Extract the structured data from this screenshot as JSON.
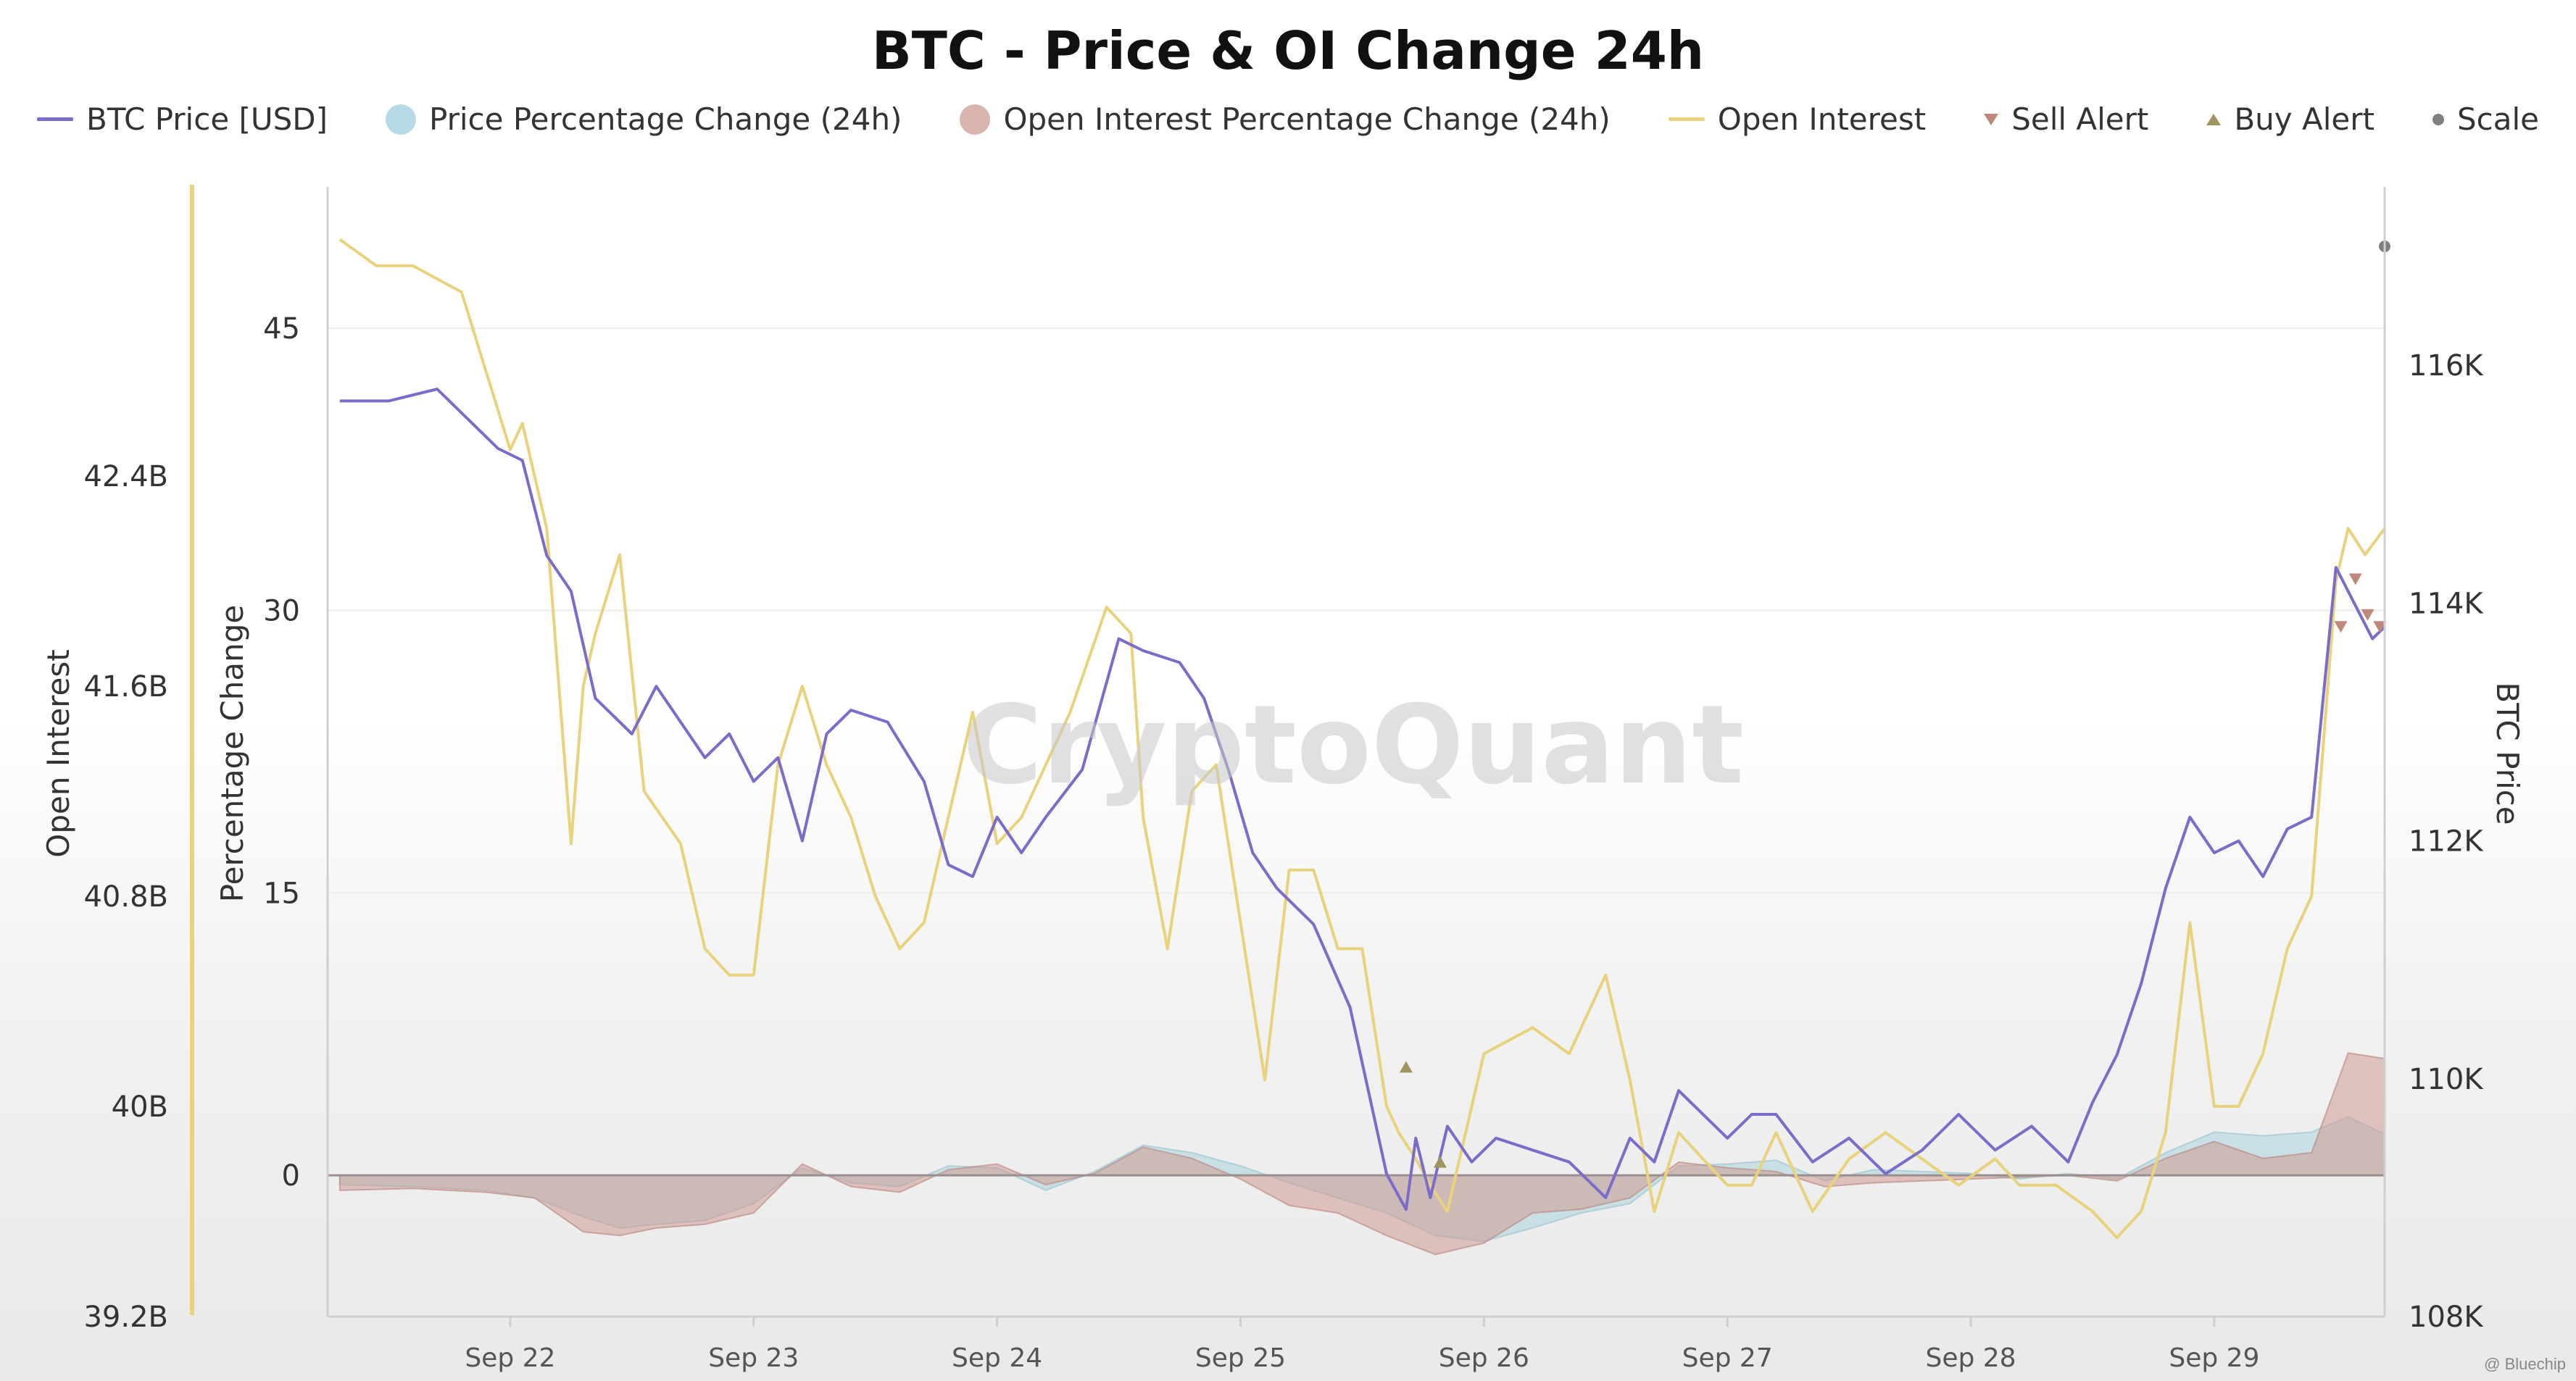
{
  "chart_data": {
    "type": "line",
    "title": "BTC - Price & OI Change 24h",
    "watermark": "CryptoQuant",
    "credit": "@ Bluechip",
    "legend": [
      {
        "label": "BTC Price [USD]",
        "swatch": "line",
        "color": "#7b6cc9"
      },
      {
        "label": "Price Percentage Change (24h)",
        "swatch": "dot",
        "color": "#b7dbe6"
      },
      {
        "label": "Open Interest Percentage Change (24h)",
        "swatch": "dot",
        "color": "#d9b5ae"
      },
      {
        "label": "Open Interest",
        "swatch": "line",
        "color": "#e8d27c"
      },
      {
        "label": "Sell Alert",
        "swatch": "tri-down",
        "color": "#c08878"
      },
      {
        "label": "Buy Alert",
        "swatch": "tri-up",
        "color": "#a09460"
      },
      {
        "label": "Scale",
        "swatch": "small-dot",
        "color": "#7f7f7f"
      }
    ],
    "axes": {
      "open_interest": {
        "label": "Open Interest",
        "ticks": [
          "42.4B",
          "41.6B",
          "40.8B",
          "40B",
          "39.2B"
        ],
        "min": 39.2,
        "max": 43.5,
        "unit": "B"
      },
      "percentage": {
        "label": "Percentage Change",
        "ticks": [
          "45",
          "30",
          "15",
          "0"
        ],
        "min": -7.5,
        "max": 52.5
      },
      "btc_price": {
        "label": "BTC Price",
        "ticks": [
          "116K",
          "114K",
          "112K",
          "110K",
          "108K"
        ],
        "min": 108000,
        "max": 117500
      },
      "x": {
        "ticks": [
          "Sep 22",
          "Sep 23",
          "Sep 24",
          "Sep 25",
          "Sep 26",
          "Sep 27",
          "Sep 28",
          "Sep 29"
        ],
        "x_min_day": 21.25,
        "x_max_day": 29.7
      }
    },
    "series": [
      {
        "name": "BTC Price [USD]",
        "color": "#7b6cc9",
        "x": [
          21.3,
          21.5,
          21.7,
          21.85,
          21.95,
          22.05,
          22.15,
          22.25,
          22.35,
          22.5,
          22.6,
          22.7,
          22.8,
          22.9,
          23.0,
          23.1,
          23.2,
          23.3,
          23.4,
          23.55,
          23.7,
          23.8,
          23.9,
          24.0,
          24.1,
          24.2,
          24.35,
          24.5,
          24.6,
          24.75,
          24.85,
          24.95,
          25.05,
          25.15,
          25.3,
          25.45,
          25.6,
          25.68,
          25.72,
          25.78,
          25.85,
          25.95,
          26.05,
          26.2,
          26.35,
          26.5,
          26.6,
          26.7,
          26.8,
          26.9,
          27.0,
          27.1,
          27.2,
          27.35,
          27.5,
          27.65,
          27.8,
          27.95,
          28.1,
          28.25,
          28.4,
          28.5,
          28.6,
          28.7,
          28.8,
          28.9,
          29.0,
          29.1,
          29.2,
          29.3,
          29.4,
          29.5,
          29.55,
          29.6,
          29.65,
          29.7
        ],
        "y": [
          115700,
          115700,
          115800,
          115500,
          115300,
          115200,
          114400,
          114100,
          113200,
          112900,
          113300,
          113000,
          112700,
          112900,
          112500,
          112700,
          112000,
          112900,
          113100,
          113000,
          112500,
          111800,
          111700,
          112200,
          111900,
          112200,
          112600,
          113700,
          113600,
          113500,
          113200,
          112600,
          111900,
          111600,
          111300,
          110600,
          109200,
          108900,
          109500,
          109000,
          109600,
          109300,
          109500,
          109400,
          109300,
          109000,
          109500,
          109300,
          109900,
          109700,
          109500,
          109700,
          109700,
          109300,
          109500,
          109200,
          109400,
          109700,
          109400,
          109600,
          109300,
          109800,
          110200,
          110800,
          111600,
          112200,
          111900,
          112000,
          111700,
          112100,
          112200,
          114300,
          114100,
          113900,
          113700,
          113800
        ]
      },
      {
        "name": "Open Interest",
        "color": "#e8d27c",
        "x": [
          21.3,
          21.45,
          21.6,
          21.8,
          22.0,
          22.05,
          22.15,
          22.25,
          22.3,
          22.35,
          22.45,
          22.55,
          22.7,
          22.8,
          22.9,
          23.0,
          23.1,
          23.2,
          23.3,
          23.4,
          23.5,
          23.6,
          23.7,
          23.8,
          23.9,
          24.0,
          24.1,
          24.2,
          24.3,
          24.45,
          24.55,
          24.6,
          24.7,
          24.8,
          24.9,
          25.0,
          25.1,
          25.2,
          25.3,
          25.4,
          25.5,
          25.6,
          25.65,
          25.72,
          25.78,
          25.85,
          26.0,
          26.2,
          26.35,
          26.5,
          26.6,
          26.7,
          26.8,
          26.9,
          27.0,
          27.1,
          27.2,
          27.35,
          27.5,
          27.65,
          27.8,
          27.95,
          28.1,
          28.2,
          28.35,
          28.5,
          28.6,
          28.7,
          28.8,
          28.9,
          29.0,
          29.1,
          29.2,
          29.3,
          29.4,
          29.5,
          29.55,
          29.62,
          29.7
        ],
        "y": [
          43.3,
          43.2,
          43.2,
          43.1,
          42.5,
          42.6,
          42.2,
          41.0,
          41.6,
          41.8,
          42.1,
          41.2,
          41.0,
          40.6,
          40.5,
          40.5,
          41.3,
          41.6,
          41.3,
          41.1,
          40.8,
          40.6,
          40.7,
          41.1,
          41.5,
          41.0,
          41.1,
          41.3,
          41.5,
          41.9,
          41.8,
          41.1,
          40.6,
          41.2,
          41.3,
          40.7,
          40.1,
          40.9,
          40.9,
          40.6,
          40.6,
          40.0,
          39.9,
          39.8,
          39.7,
          39.6,
          40.2,
          40.3,
          40.2,
          40.5,
          40.1,
          39.6,
          39.9,
          39.8,
          39.7,
          39.7,
          39.9,
          39.6,
          39.8,
          39.9,
          39.8,
          39.7,
          39.8,
          39.7,
          39.7,
          39.6,
          39.5,
          39.6,
          39.9,
          40.7,
          40.0,
          40.0,
          40.2,
          40.6,
          40.8,
          42.0,
          42.2,
          42.1,
          42.2
        ]
      },
      {
        "name": "Price Percentage Change (24h)",
        "color": "#b7dbe6",
        "x": [
          21.3,
          21.6,
          21.9,
          22.1,
          22.3,
          22.45,
          22.6,
          22.8,
          23.0,
          23.2,
          23.4,
          23.6,
          23.8,
          24.0,
          24.2,
          24.4,
          24.6,
          24.8,
          25.0,
          25.2,
          25.4,
          25.6,
          25.8,
          26.0,
          26.2,
          26.4,
          26.6,
          26.8,
          27.0,
          27.2,
          27.4,
          27.6,
          27.8,
          28.0,
          28.2,
          28.4,
          28.6,
          28.8,
          29.0,
          29.2,
          29.4,
          29.55,
          29.7
        ],
        "y": [
          -0.5,
          -0.6,
          -0.8,
          -1.2,
          -2.2,
          -2.8,
          -2.6,
          -2.4,
          -1.5,
          0.4,
          -0.4,
          -0.6,
          0.5,
          0.4,
          -0.8,
          0.2,
          1.6,
          1.2,
          0.5,
          -0.4,
          -1.2,
          -2.0,
          -3.2,
          -3.5,
          -2.8,
          -2.0,
          -1.5,
          0.5,
          0.6,
          0.8,
          -0.3,
          0.3,
          0.2,
          0.1,
          -0.2,
          0.1,
          -0.2,
          1.2,
          2.3,
          2.1,
          2.3,
          3.1,
          2.2
        ]
      },
      {
        "name": "Open Interest Percentage Change (24h)",
        "color": "#d9b5ae",
        "x": [
          21.3,
          21.6,
          21.9,
          22.1,
          22.3,
          22.45,
          22.6,
          22.8,
          23.0,
          23.2,
          23.4,
          23.6,
          23.8,
          24.0,
          24.2,
          24.4,
          24.6,
          24.8,
          25.0,
          25.2,
          25.4,
          25.6,
          25.8,
          26.0,
          26.2,
          26.4,
          26.6,
          26.8,
          27.0,
          27.2,
          27.4,
          27.6,
          27.8,
          28.0,
          28.2,
          28.4,
          28.6,
          28.8,
          29.0,
          29.2,
          29.4,
          29.55,
          29.7
        ],
        "y": [
          -0.8,
          -0.7,
          -0.9,
          -1.2,
          -3.0,
          -3.2,
          -2.8,
          -2.6,
          -2.0,
          0.6,
          -0.6,
          -0.9,
          0.3,
          0.6,
          -0.5,
          0.1,
          1.5,
          0.9,
          -0.2,
          -1.6,
          -2.0,
          -3.2,
          -4.2,
          -3.6,
          -2.0,
          -1.8,
          -1.2,
          0.7,
          0.4,
          0.2,
          -0.6,
          -0.4,
          -0.3,
          -0.2,
          -0.1,
          0.0,
          -0.3,
          0.9,
          1.8,
          0.9,
          1.2,
          6.5,
          6.2
        ]
      }
    ],
    "alerts": {
      "sell": [
        {
          "day": 29.58,
          "price": 114200
        },
        {
          "day": 29.63,
          "price": 113900
        },
        {
          "day": 29.68,
          "price": 113800
        },
        {
          "day": 29.52,
          "price": 113800
        }
      ],
      "buy": [
        {
          "day": 25.68,
          "price": 110100
        },
        {
          "day": 25.82,
          "price": 109300
        }
      ],
      "scale": [
        {
          "day": 29.7,
          "price": 117000
        }
      ]
    }
  }
}
